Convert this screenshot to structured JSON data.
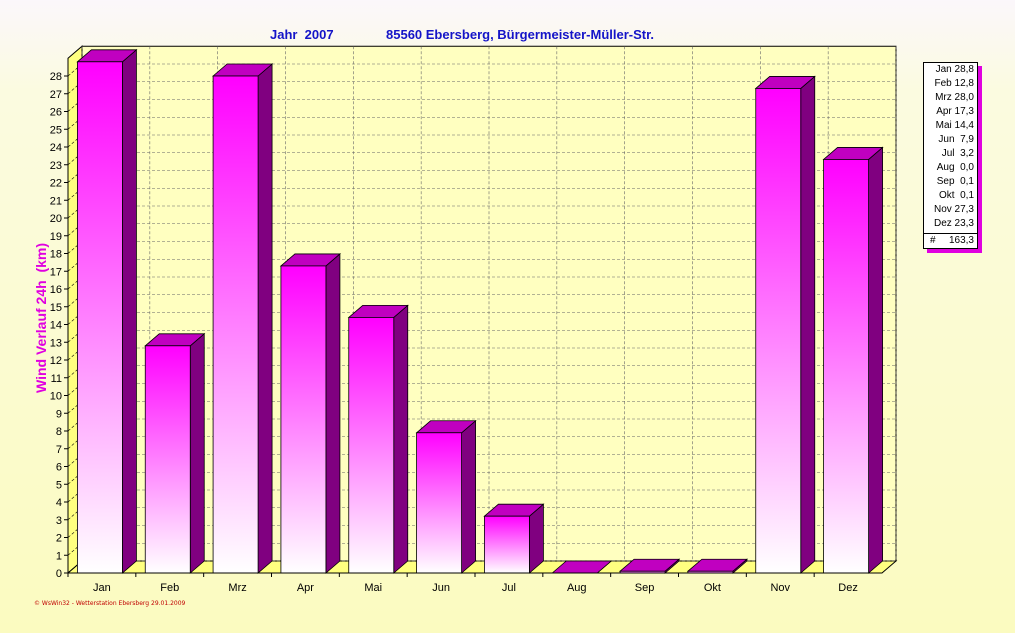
{
  "header": {
    "year_label": "Jahr  2007",
    "location": "85560 Ebersberg, Bürgermeister-Müller-Str."
  },
  "footer": "© WsWin32 - Wetterstation Ebersberg 29.01.2009",
  "legend": {
    "rows": [
      "Jan 28,8",
      "Feb 12,8",
      "Mrz 28,0",
      "Apr 17,3",
      "Mai 14,4",
      "Jun  7,9",
      "Jul  3,2",
      "Aug  0,0",
      "Sep  0,1",
      "Okt  0,1",
      "Nov 27,3",
      "Dez 23,3"
    ],
    "total_symbol": "#",
    "total_value": "163,3"
  },
  "colors": {
    "bar_top": "#ff00ff",
    "bar_bottom": "#ffffff",
    "bar_side": "#800080",
    "floor": "#ffff80",
    "label": "#e000e0",
    "title": "#1414c8"
  },
  "chart_data": {
    "type": "bar",
    "categories": [
      "Jan",
      "Feb",
      "Mrz",
      "Apr",
      "Mai",
      "Jun",
      "Jul",
      "Aug",
      "Sep",
      "Okt",
      "Nov",
      "Dez"
    ],
    "values": [
      28.8,
      12.8,
      28.0,
      17.3,
      14.4,
      7.9,
      3.2,
      0.0,
      0.1,
      0.1,
      27.3,
      23.3
    ],
    "ylabel": "Wind Verlauf 24h  (km)",
    "ylim": [
      0,
      29
    ],
    "yticks": [
      0,
      1,
      2,
      3,
      4,
      5,
      6,
      7,
      8,
      9,
      10,
      11,
      12,
      13,
      14,
      15,
      16,
      17,
      18,
      19,
      20,
      21,
      22,
      23,
      24,
      25,
      26,
      27,
      28
    ],
    "grid": true,
    "legend_position": "right"
  }
}
